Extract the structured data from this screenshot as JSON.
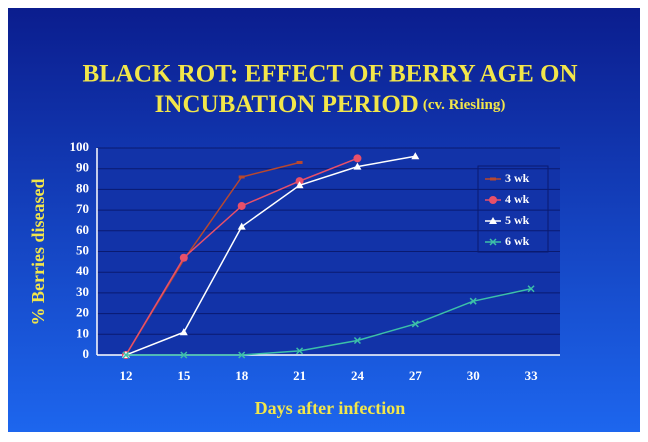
{
  "chart_data": {
    "type": "line",
    "title": [
      "BLACK ROT: EFFECT OF BERRY AGE ON",
      "INCUBATION PERIOD"
    ],
    "subtitle": "(cv. Riesling)",
    "x_label": "Days after infection",
    "y_label": "% Berries diseased",
    "categories": [
      "12",
      "15",
      "18",
      "21",
      "24",
      "27",
      "30",
      "33"
    ],
    "series": [
      {
        "name": "3 wk",
        "color": "#b8482e",
        "marker": "dash",
        "values": [
          0,
          46,
          86,
          93,
          null,
          null,
          null,
          null
        ]
      },
      {
        "name": "4 wk",
        "color": "#e8506a",
        "marker": "circle",
        "values": [
          0,
          47,
          72,
          84,
          95,
          null,
          null,
          null
        ]
      },
      {
        "name": "5 wk",
        "color": "#ffffff",
        "marker": "triangle",
        "values": [
          0,
          11,
          62,
          82,
          91,
          96,
          null,
          null
        ]
      },
      {
        "name": "6 wk",
        "color": "#3cc0a8",
        "marker": "cross",
        "values": [
          0,
          0,
          0,
          2,
          7,
          15,
          26,
          32
        ]
      }
    ],
    "ylim": [
      0,
      100
    ],
    "yticks": [
      0,
      10,
      20,
      30,
      40,
      50,
      60,
      70,
      80,
      90,
      100
    ],
    "grid": true
  }
}
